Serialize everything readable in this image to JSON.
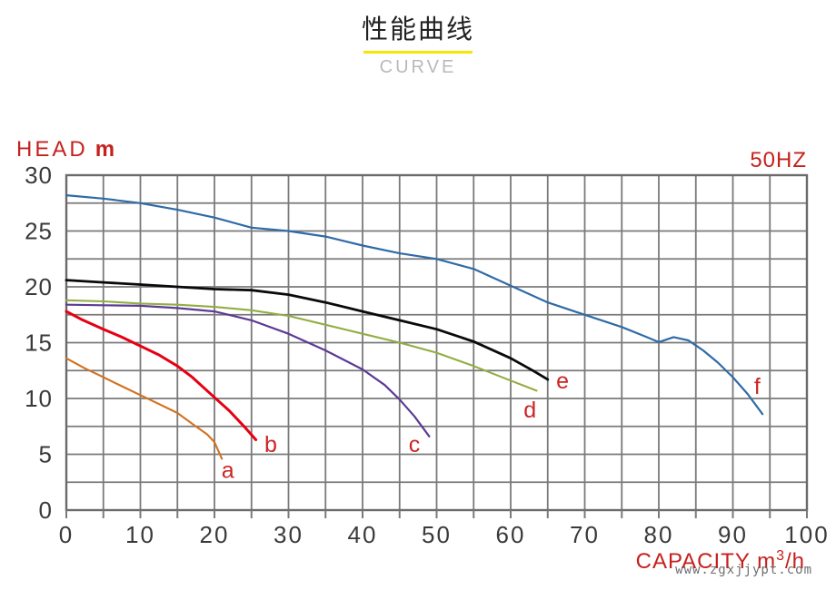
{
  "page": {
    "title": "性能曲线",
    "subtitle": "CURVE",
    "watermark": "www.zgxjjypt.com"
  },
  "axes": {
    "ylabel": "HEAD",
    "ylabel_unit": "m",
    "hz_label": "50HZ",
    "xlabel_prefix": "CAPACITY m",
    "xlabel_sup": "3",
    "xlabel_suffix": "/h"
  },
  "colors": {
    "title_underline": "#f7e400",
    "red_text": "#c5211d",
    "curve_label": "#cc2424",
    "grid": "#7a7a7a",
    "border": "#6a6a6a",
    "tick_text": "#3a3a3a"
  },
  "chart_data": {
    "type": "line",
    "title": "性能曲线",
    "subtitle": "CURVE",
    "xlabel": "CAPACITY m³/h",
    "ylabel": "HEAD m",
    "frequency_note": "50HZ",
    "xlim": [
      0,
      100
    ],
    "ylim": [
      0,
      30
    ],
    "x_major_ticks": [
      0,
      10,
      20,
      30,
      40,
      50,
      60,
      70,
      80,
      90,
      100
    ],
    "y_major_ticks": [
      0,
      5,
      10,
      15,
      20,
      25,
      30
    ],
    "x_grid_step": 5,
    "y_grid_step": 2.5,
    "grid": true,
    "legend_position": "none",
    "series": [
      {
        "name": "a",
        "color": "#d2711f",
        "width": 2.1,
        "label_pos": [
          21.8,
          3.6
        ],
        "points": [
          [
            0,
            13.6
          ],
          [
            2.5,
            12.7
          ],
          [
            5,
            11.9
          ],
          [
            7.5,
            11.1
          ],
          [
            10,
            10.3
          ],
          [
            12.5,
            9.5
          ],
          [
            15,
            8.7
          ],
          [
            17.5,
            7.5
          ],
          [
            19,
            6.8
          ],
          [
            20,
            6.1
          ],
          [
            21,
            4.6
          ]
        ]
      },
      {
        "name": "b",
        "color": "#e60012",
        "width": 3.0,
        "label_pos": [
          27.6,
          5.9
        ],
        "points": [
          [
            0,
            17.8
          ],
          [
            2,
            17.1
          ],
          [
            5,
            16.2
          ],
          [
            7.5,
            15.5
          ],
          [
            10,
            14.7
          ],
          [
            12.5,
            13.9
          ],
          [
            15,
            12.9
          ],
          [
            17,
            11.9
          ],
          [
            20,
            10.1
          ],
          [
            22,
            8.9
          ],
          [
            24,
            7.5
          ],
          [
            25.6,
            6.3
          ]
        ]
      },
      {
        "name": "c",
        "color": "#5c3a96",
        "width": 2.2,
        "label_pos": [
          47.0,
          5.9
        ],
        "points": [
          [
            0,
            18.4
          ],
          [
            5,
            18.35
          ],
          [
            10,
            18.3
          ],
          [
            15,
            18.1
          ],
          [
            20,
            17.8
          ],
          [
            25,
            17.0
          ],
          [
            30,
            15.8
          ],
          [
            35,
            14.3
          ],
          [
            40,
            12.6
          ],
          [
            43,
            11.2
          ],
          [
            45,
            9.9
          ],
          [
            47,
            8.4
          ],
          [
            49,
            6.6
          ]
        ]
      },
      {
        "name": "d",
        "color": "#93ad43",
        "width": 2.1,
        "label_pos": [
          62.6,
          9.0
        ],
        "points": [
          [
            0,
            18.8
          ],
          [
            5,
            18.7
          ],
          [
            10,
            18.5
          ],
          [
            15,
            18.4
          ],
          [
            20,
            18.2
          ],
          [
            25,
            17.9
          ],
          [
            30,
            17.4
          ],
          [
            35,
            16.6
          ],
          [
            40,
            15.8
          ],
          [
            45,
            15.0
          ],
          [
            50,
            14.1
          ],
          [
            55,
            12.9
          ],
          [
            60,
            11.6
          ],
          [
            63.5,
            10.7
          ]
        ]
      },
      {
        "name": "e",
        "color": "#0a0a0a",
        "width": 2.8,
        "label_pos": [
          67.0,
          11.6
        ],
        "points": [
          [
            0,
            20.6
          ],
          [
            5,
            20.4
          ],
          [
            10,
            20.2
          ],
          [
            15,
            20.0
          ],
          [
            20,
            19.8
          ],
          [
            25,
            19.7
          ],
          [
            30,
            19.3
          ],
          [
            35,
            18.6
          ],
          [
            40,
            17.8
          ],
          [
            45,
            17.0
          ],
          [
            50,
            16.2
          ],
          [
            55,
            15.1
          ],
          [
            58,
            14.2
          ],
          [
            60,
            13.6
          ],
          [
            63,
            12.5
          ],
          [
            65,
            11.7
          ]
        ]
      },
      {
        "name": "f",
        "color": "#2f6ba7",
        "width": 2.2,
        "label_pos": [
          93.3,
          11.1
        ],
        "points": [
          [
            0,
            28.2
          ],
          [
            5,
            27.9
          ],
          [
            10,
            27.5
          ],
          [
            15,
            26.9
          ],
          [
            20,
            26.2
          ],
          [
            25,
            25.3
          ],
          [
            30,
            25.0
          ],
          [
            35,
            24.5
          ],
          [
            40,
            23.7
          ],
          [
            45,
            23.0
          ],
          [
            50,
            22.5
          ],
          [
            55,
            21.6
          ],
          [
            60,
            20.1
          ],
          [
            65,
            18.6
          ],
          [
            70,
            17.5
          ],
          [
            75,
            16.4
          ],
          [
            78,
            15.6
          ],
          [
            80,
            15.05
          ],
          [
            82,
            15.5
          ],
          [
            84,
            15.2
          ],
          [
            86,
            14.3
          ],
          [
            88,
            13.2
          ],
          [
            90,
            11.9
          ],
          [
            92,
            10.4
          ],
          [
            94,
            8.6
          ]
        ]
      }
    ]
  }
}
